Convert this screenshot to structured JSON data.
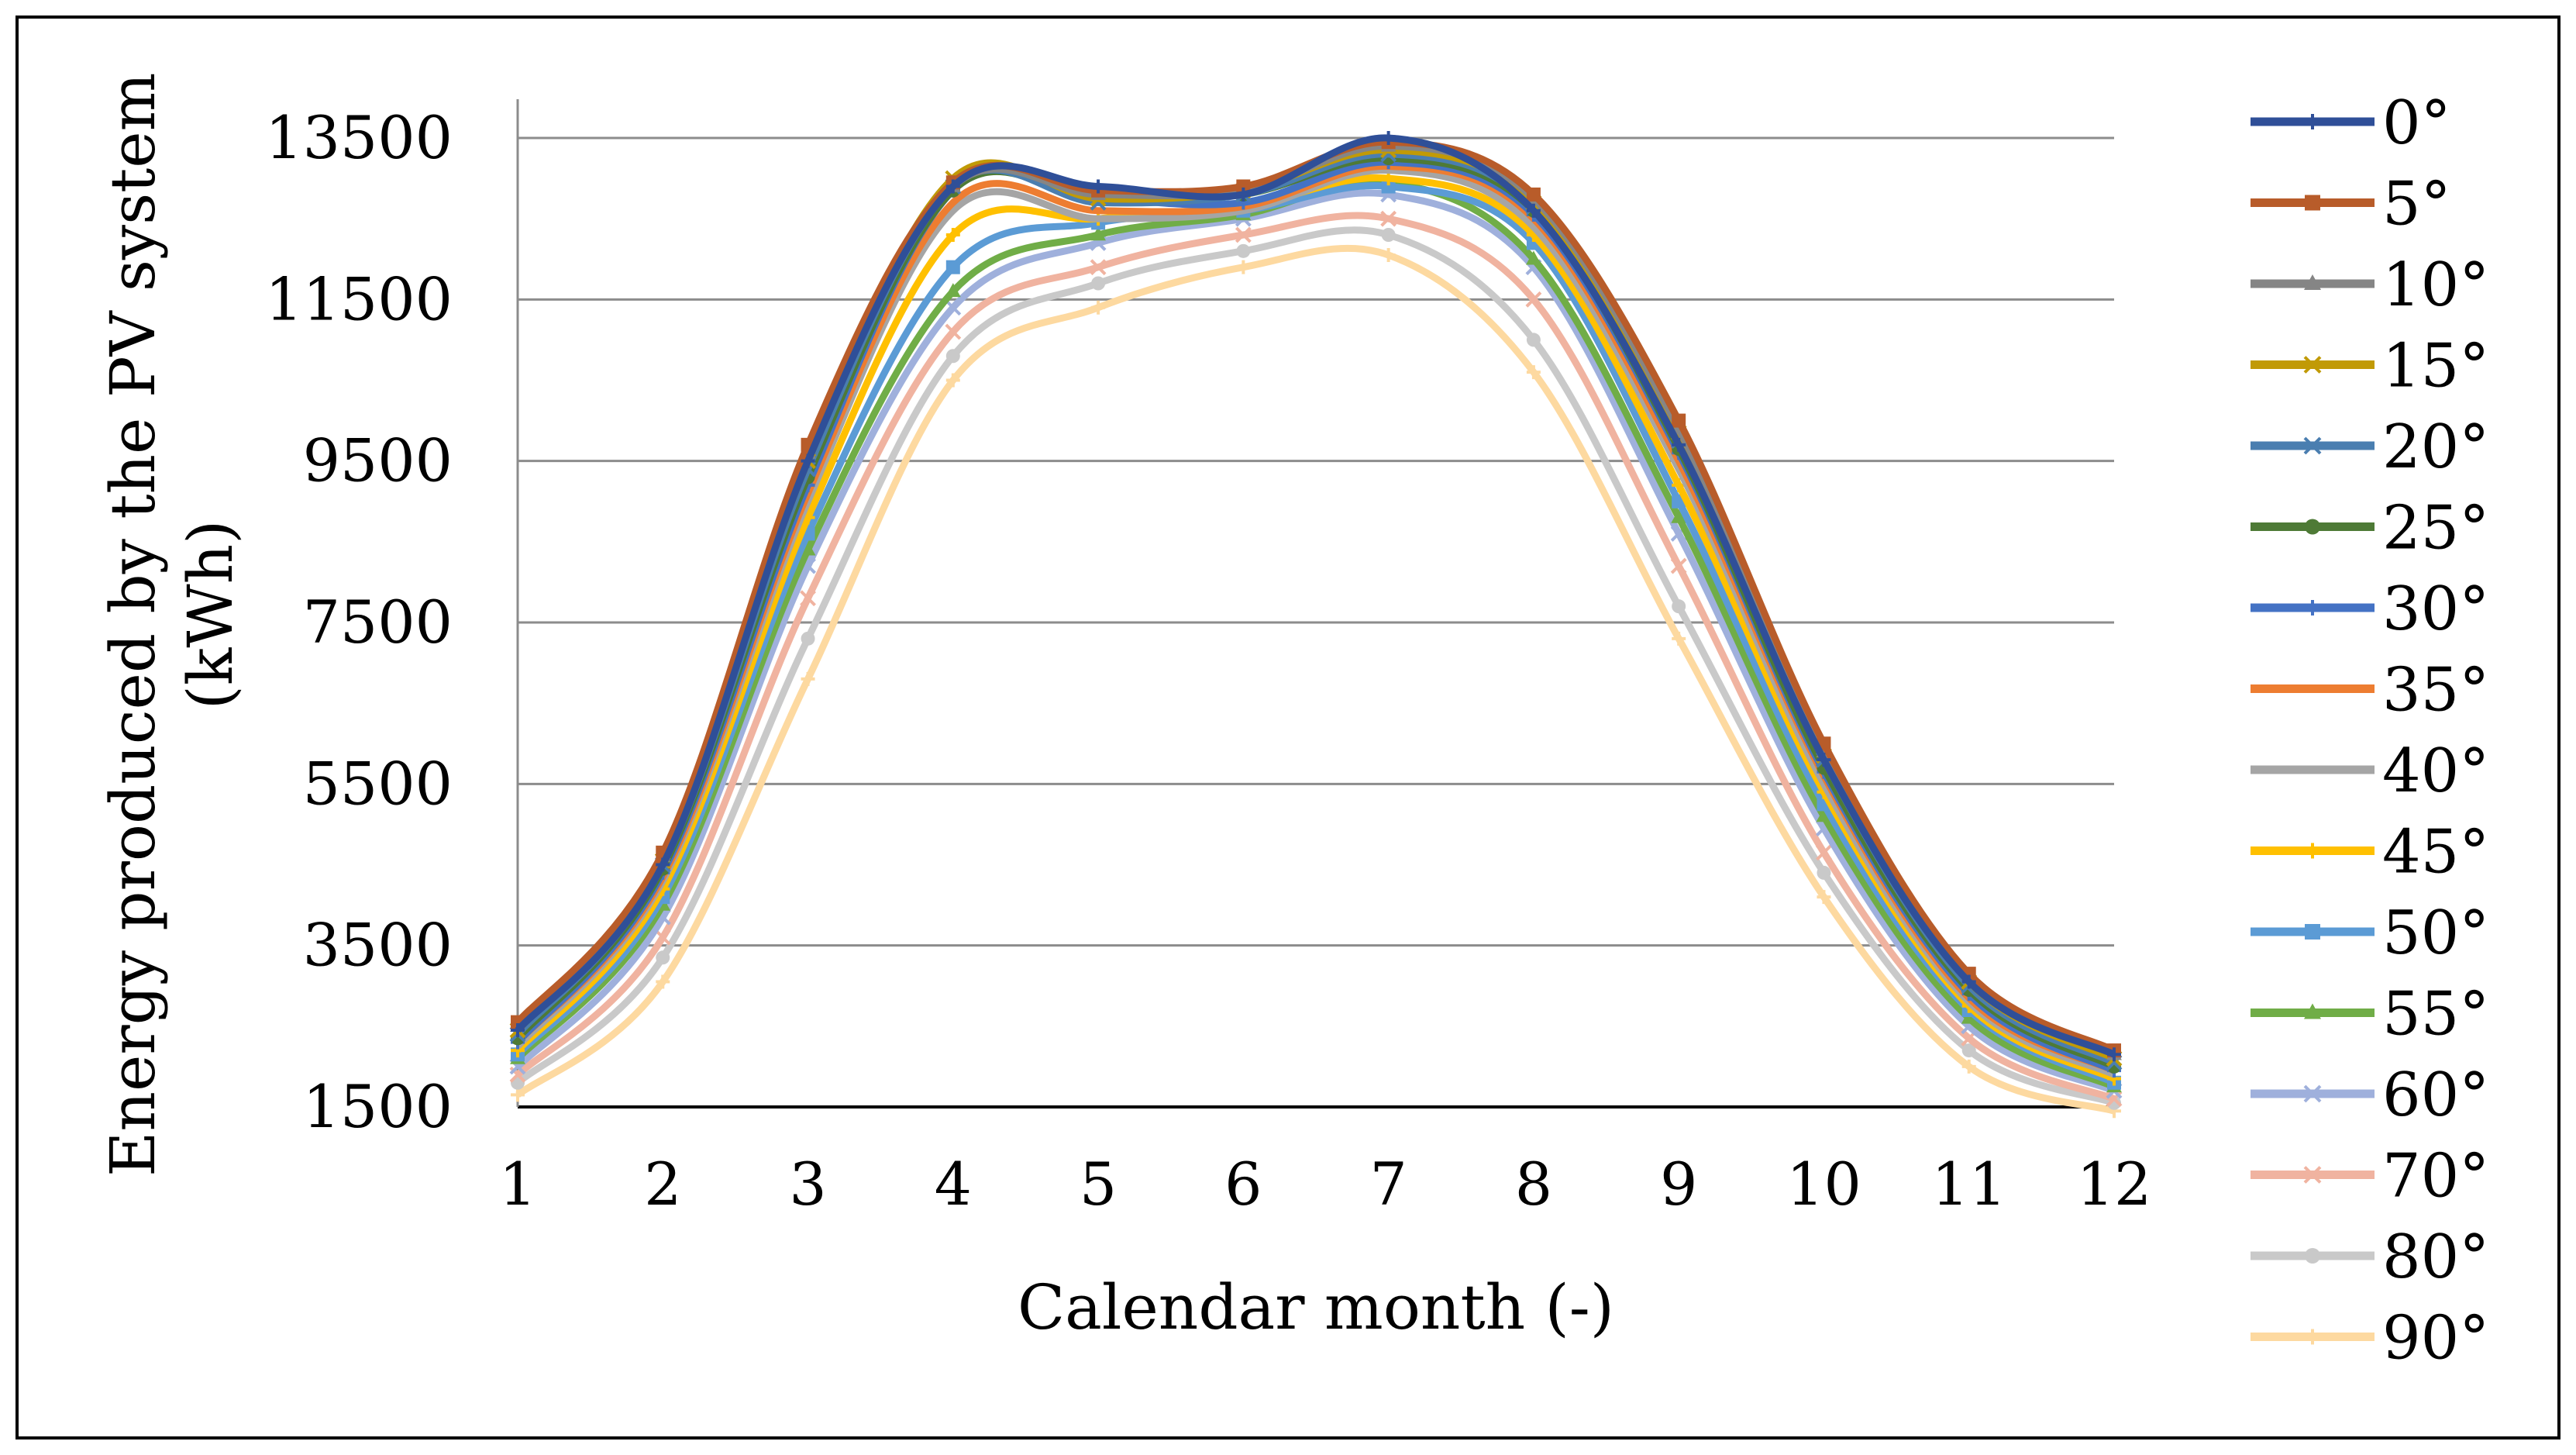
{
  "chart_data": {
    "type": "line",
    "title": "",
    "xlabel": "Calendar month (-)",
    "ylabel_lines": [
      "Energy produced by the PV system",
      "(kWh)"
    ],
    "categories": [
      "1",
      "2",
      "3",
      "4",
      "5",
      "6",
      "7",
      "8",
      "9",
      "10",
      "11",
      "12"
    ],
    "ylim": [
      1500,
      13500
    ],
    "yticks": [
      "1500",
      "3500",
      "5500",
      "7500",
      "9500",
      "11500",
      "13500"
    ],
    "grid": true,
    "legend_position": "right",
    "series": [
      {
        "name": "0°",
        "color": "#2f4f98",
        "marker": "plus",
        "values": [
          2450,
          4500,
          9500,
          12900,
          12900,
          12800,
          13500,
          12600,
          9700,
          5800,
          3050,
          2150
        ]
      },
      {
        "name": "5°",
        "color": "#b85c2a",
        "marker": "square",
        "values": [
          2550,
          4650,
          9700,
          12950,
          12850,
          12900,
          13450,
          12800,
          10000,
          6000,
          3150,
          2200
        ]
      },
      {
        "name": "10°",
        "color": "#858585",
        "marker": "triangle",
        "values": [
          2500,
          4600,
          9600,
          12900,
          12800,
          12850,
          13400,
          12750,
          9900,
          5900,
          3100,
          2150
        ]
      },
      {
        "name": "15°",
        "color": "#c19a06",
        "marker": "x",
        "values": [
          2450,
          4550,
          9500,
          13000,
          12750,
          12850,
          13350,
          12700,
          9850,
          5850,
          3050,
          2100
        ]
      },
      {
        "name": "20°",
        "color": "#4a7eb0",
        "marker": "x",
        "values": [
          2400,
          4500,
          9400,
          12900,
          12700,
          12800,
          13300,
          12650,
          9750,
          5800,
          3000,
          2050
        ]
      },
      {
        "name": "25°",
        "color": "#4e7a36",
        "marker": "circle",
        "values": [
          2350,
          4450,
          9300,
          12850,
          12750,
          12800,
          13250,
          12600,
          9650,
          5700,
          2950,
          2000
        ]
      },
      {
        "name": "30°",
        "color": "#4472c4",
        "marker": "plus",
        "values": [
          2300,
          4400,
          9200,
          12850,
          12750,
          12700,
          13200,
          12550,
          9600,
          5650,
          2900,
          1950
        ]
      },
      {
        "name": "35°",
        "color": "#ed7d31",
        "marker": "none",
        "values": [
          2300,
          4350,
          9100,
          12700,
          12600,
          12650,
          13150,
          12500,
          9500,
          5600,
          2850,
          1950
        ]
      },
      {
        "name": "40°",
        "color": "#a5a5a5",
        "marker": "none",
        "values": [
          2250,
          4300,
          9000,
          12600,
          12500,
          12600,
          13100,
          12400,
          9400,
          5500,
          2800,
          1900
        ]
      },
      {
        "name": "45°",
        "color": "#ffc000",
        "marker": "plus",
        "values": [
          2200,
          4200,
          8800,
          12300,
          12500,
          12650,
          13000,
          12300,
          9200,
          5400,
          2750,
          1850
        ]
      },
      {
        "name": "50°",
        "color": "#5b9bd5",
        "marker": "square",
        "values": [
          2150,
          4100,
          8600,
          11900,
          12450,
          12600,
          12900,
          12200,
          9000,
          5250,
          2700,
          1800
        ]
      },
      {
        "name": "55°",
        "color": "#70ad47",
        "marker": "triangle",
        "values": [
          2100,
          4000,
          8400,
          11600,
          12300,
          12550,
          12950,
          12000,
          8800,
          5100,
          2600,
          1750
        ]
      },
      {
        "name": "60°",
        "color": "#9fb0dc",
        "marker": "x",
        "values": [
          2000,
          3850,
          8200,
          11400,
          12200,
          12500,
          12800,
          11900,
          8600,
          4950,
          2500,
          1700
        ]
      },
      {
        "name": "70°",
        "color": "#f0b3a0",
        "marker": "x",
        "values": [
          1900,
          3600,
          7800,
          11100,
          11900,
          12300,
          12500,
          11500,
          8200,
          4650,
          2350,
          1600
        ]
      },
      {
        "name": "80°",
        "color": "#c9c9c9",
        "marker": "circle",
        "values": [
          1800,
          3350,
          7300,
          10800,
          11700,
          12100,
          12300,
          11000,
          7700,
          4400,
          2200,
          1550
        ]
      },
      {
        "name": "90°",
        "color": "#fdd9a0",
        "marker": "plus",
        "values": [
          1650,
          3050,
          6800,
          10500,
          11400,
          11900,
          12050,
          10600,
          7300,
          4100,
          2000,
          1450
        ]
      }
    ]
  }
}
